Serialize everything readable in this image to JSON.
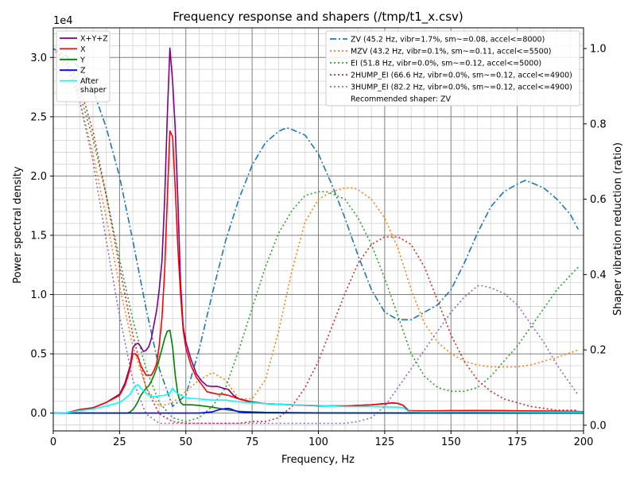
{
  "chart_data": {
    "type": "line",
    "title": "Frequency response and shapers (/tmp/t1_x.csv)",
    "xlabel": "Frequency, Hz",
    "ylabel": "Power spectral density",
    "y2label": "Shaper vibration reduction (ratio)",
    "y_offset_label": "1e4",
    "xlim": [
      0,
      200
    ],
    "ylim": [
      -1500,
      32500
    ],
    "y2lim": [
      -0.015,
      1.055
    ],
    "x_ticks": [
      "0",
      "25",
      "50",
      "75",
      "100",
      "125",
      "150",
      "175",
      "200"
    ],
    "y_ticks": [
      "0.0",
      "0.5",
      "1.0",
      "1.5",
      "2.0",
      "2.5",
      "3.0"
    ],
    "y2_ticks": [
      "0.0",
      "0.2",
      "0.4",
      "0.6",
      "0.8",
      "1.0"
    ],
    "grid": true,
    "legend_psd_position": "top-left",
    "legend_shapers_position": "top-right",
    "psd_series": [
      {
        "name": "X+Y+Z",
        "color": "#800080",
        "x": [
          0,
          5,
          10,
          15,
          20,
          25,
          27,
          29,
          30,
          31,
          32,
          33,
          34,
          35,
          36,
          37,
          38,
          39,
          40,
          41,
          42,
          43,
          44,
          45,
          46,
          47,
          48,
          49,
          50,
          52,
          54,
          56,
          58,
          60,
          62,
          64,
          66,
          68,
          70,
          75,
          80,
          90,
          100,
          110,
          120,
          125,
          128,
          130,
          132,
          134,
          140,
          150,
          160,
          170,
          180,
          190,
          200
        ],
        "y": [
          0,
          20,
          300,
          450,
          900,
          1600,
          2500,
          4000,
          5500,
          5800,
          5900,
          5600,
          5200,
          5300,
          5600,
          6300,
          7500,
          8700,
          10500,
          12800,
          18000,
          25000,
          30800,
          28000,
          24000,
          18000,
          11000,
          7300,
          6000,
          4500,
          3300,
          2700,
          2300,
          2250,
          2250,
          2100,
          2000,
          1500,
          1200,
          900,
          800,
          700,
          620,
          600,
          700,
          800,
          860,
          820,
          650,
          200,
          180,
          200,
          220,
          200,
          180,
          160,
          120
        ]
      },
      {
        "name": "X",
        "color": "#ff0000",
        "x": [
          0,
          5,
          10,
          15,
          20,
          25,
          27,
          28,
          29,
          30,
          31,
          32,
          33,
          34,
          35,
          36,
          37,
          38,
          39,
          40,
          41,
          42,
          43,
          44,
          45,
          46,
          47,
          48,
          49,
          50,
          52,
          54,
          56,
          58,
          60,
          62,
          64,
          66,
          68,
          70,
          75,
          80,
          90,
          100,
          110,
          120,
          125,
          128,
          130,
          132,
          134,
          140,
          150,
          160,
          170,
          180,
          190,
          200
        ],
        "y": [
          0,
          20,
          300,
          450,
          900,
          1500,
          2300,
          3000,
          3800,
          5000,
          5000,
          4700,
          4000,
          3600,
          3200,
          3200,
          3200,
          3600,
          4200,
          5800,
          8000,
          12000,
          18000,
          23800,
          23300,
          19000,
          14000,
          10000,
          7000,
          5500,
          4000,
          3000,
          2400,
          1800,
          1700,
          1600,
          1600,
          1500,
          1350,
          1200,
          950,
          800,
          700,
          620,
          600,
          700,
          800,
          860,
          820,
          650,
          200,
          180,
          200,
          220,
          200,
          180,
          160,
          120
        ]
      },
      {
        "name": "Y",
        "color": "#008000",
        "x": [
          0,
          10,
          20,
          28,
          29,
          30,
          31,
          32,
          33,
          34,
          35,
          36,
          37,
          38,
          39,
          40,
          41,
          42,
          43,
          44,
          45,
          46,
          47,
          48,
          49,
          50,
          52,
          55,
          60,
          65,
          70,
          80,
          100,
          150,
          200
        ],
        "y": [
          0,
          0,
          0,
          0,
          100,
          300,
          600,
          1000,
          1500,
          1800,
          2100,
          2300,
          2700,
          3200,
          3800,
          4600,
          5400,
          6300,
          6900,
          7000,
          5600,
          3200,
          1600,
          900,
          700,
          700,
          700,
          650,
          500,
          300,
          150,
          60,
          20,
          10,
          0
        ]
      },
      {
        "name": "Z",
        "color": "#0000ff",
        "x": [
          0,
          20,
          40,
          55,
          60,
          62,
          64,
          66,
          67,
          68,
          70,
          72,
          75,
          80,
          100,
          150,
          200
        ],
        "y": [
          0,
          0,
          0,
          0,
          100,
          250,
          350,
          400,
          350,
          250,
          100,
          50,
          30,
          20,
          10,
          0,
          0
        ]
      },
      {
        "name": "After\nshaper",
        "color": "#00ffff",
        "x": [
          0,
          5,
          10,
          15,
          20,
          25,
          27,
          29,
          30,
          31,
          32,
          33,
          34,
          35,
          36,
          37,
          38,
          40,
          42,
          44,
          45,
          46,
          48,
          50,
          52,
          55,
          60,
          65,
          70,
          80,
          90,
          100,
          110,
          120,
          130,
          132,
          134,
          140,
          150,
          160,
          170,
          180,
          200
        ],
        "y": [
          0,
          20,
          200,
          350,
          600,
          900,
          1200,
          1600,
          2000,
          2300,
          2400,
          2100,
          1900,
          1700,
          1500,
          1400,
          1400,
          1450,
          1500,
          1700,
          2100,
          1800,
          1500,
          1300,
          1250,
          1200,
          1100,
          1100,
          950,
          800,
          700,
          650,
          550,
          550,
          500,
          450,
          150,
          100,
          120,
          120,
          100,
          90,
          80
        ]
      }
    ],
    "shaper_series": [
      {
        "name": "ZV (45.2 Hz, vibr=1.7%, sm~=0.08, accel<=8000)",
        "color": "#1f77b4",
        "dash": "dashdot",
        "x": [
          0,
          5,
          10,
          15,
          20,
          25,
          30,
          35,
          40,
          45,
          50,
          55,
          60,
          65,
          70,
          75,
          80,
          85,
          88,
          90,
          95,
          100,
          105,
          110,
          115,
          120,
          125,
          130,
          135,
          140,
          145,
          150,
          155,
          160,
          165,
          170,
          175,
          178,
          180,
          185,
          190,
          195,
          198
        ],
        "y": [
          1.0,
          0.98,
          0.95,
          0.89,
          0.79,
          0.66,
          0.49,
          0.31,
          0.15,
          0.05,
          0.08,
          0.2,
          0.35,
          0.49,
          0.6,
          0.69,
          0.75,
          0.78,
          0.79,
          0.785,
          0.77,
          0.72,
          0.64,
          0.55,
          0.45,
          0.36,
          0.3,
          0.28,
          0.28,
          0.3,
          0.32,
          0.36,
          0.43,
          0.51,
          0.58,
          0.62,
          0.64,
          0.65,
          0.645,
          0.63,
          0.6,
          0.56,
          0.52
        ]
      },
      {
        "name": "MZV (43.2 Hz, vibr=0.1%, sm~=0.11, accel<=5500)",
        "color": "#ff7f0e",
        "dash": "dotted",
        "x": [
          0,
          5,
          10,
          15,
          20,
          25,
          30,
          35,
          40,
          45,
          50,
          55,
          60,
          65,
          70,
          75,
          80,
          85,
          90,
          95,
          100,
          105,
          110,
          113,
          115,
          120,
          125,
          130,
          135,
          140,
          145,
          150,
          155,
          160,
          165,
          170,
          175,
          180,
          185,
          190,
          198
        ],
        "y": [
          1.0,
          0.95,
          0.86,
          0.72,
          0.55,
          0.37,
          0.21,
          0.1,
          0.05,
          0.06,
          0.09,
          0.12,
          0.14,
          0.12,
          0.07,
          0.07,
          0.12,
          0.25,
          0.41,
          0.54,
          0.6,
          0.62,
          0.63,
          0.63,
          0.625,
          0.6,
          0.55,
          0.47,
          0.36,
          0.27,
          0.22,
          0.19,
          0.17,
          0.16,
          0.155,
          0.155,
          0.155,
          0.16,
          0.17,
          0.18,
          0.2
        ]
      },
      {
        "name": "EI (51.8 Hz, vibr=0.0%, sm~=0.12, accel<=5000)",
        "color": "#2ca02c",
        "dash": "dotted",
        "x": [
          0,
          5,
          10,
          15,
          20,
          25,
          30,
          35,
          40,
          45,
          50,
          55,
          60,
          65,
          70,
          75,
          80,
          85,
          90,
          95,
          100,
          103,
          105,
          110,
          115,
          120,
          125,
          130,
          135,
          140,
          145,
          150,
          155,
          160,
          165,
          170,
          175,
          180,
          185,
          190,
          198
        ],
        "y": [
          1.0,
          0.96,
          0.88,
          0.76,
          0.61,
          0.44,
          0.28,
          0.15,
          0.06,
          0.02,
          0.01,
          0.02,
          0.05,
          0.1,
          0.2,
          0.31,
          0.42,
          0.51,
          0.57,
          0.61,
          0.62,
          0.62,
          0.615,
          0.6,
          0.55,
          0.48,
          0.39,
          0.29,
          0.19,
          0.13,
          0.1,
          0.09,
          0.09,
          0.1,
          0.13,
          0.17,
          0.21,
          0.26,
          0.31,
          0.36,
          0.42
        ]
      },
      {
        "name": "2HUMP_EI (66.6 Hz, vibr=0.0%, sm~=0.12, accel<=4900)",
        "color": "#d62728",
        "dash": "dotted",
        "x": [
          0,
          5,
          10,
          15,
          20,
          25,
          30,
          35,
          40,
          45,
          50,
          55,
          60,
          65,
          70,
          75,
          80,
          85,
          90,
          95,
          100,
          105,
          110,
          115,
          120,
          125,
          130,
          135,
          140,
          145,
          150,
          155,
          160,
          165,
          170,
          175,
          180,
          185,
          190,
          198
        ],
        "y": [
          1.0,
          0.97,
          0.9,
          0.78,
          0.61,
          0.42,
          0.24,
          0.1,
          0.03,
          0.01,
          0.005,
          0.005,
          0.005,
          0.005,
          0.005,
          0.01,
          0.01,
          0.02,
          0.05,
          0.1,
          0.17,
          0.26,
          0.35,
          0.43,
          0.48,
          0.5,
          0.5,
          0.48,
          0.42,
          0.33,
          0.24,
          0.17,
          0.12,
          0.09,
          0.07,
          0.06,
          0.05,
          0.045,
          0.04,
          0.04
        ]
      },
      {
        "name": "3HUMP_EI (82.2 Hz, vibr=0.0%, sm~=0.12, accel<=4900)",
        "color": "#9467bd",
        "dash": "dotted",
        "x": [
          0,
          5,
          10,
          15,
          20,
          25,
          30,
          35,
          40,
          45,
          50,
          60,
          70,
          80,
          90,
          100,
          110,
          115,
          120,
          125,
          130,
          135,
          140,
          145,
          150,
          155,
          160,
          162,
          165,
          170,
          175,
          180,
          185,
          190,
          195,
          198
        ],
        "y": [
          1.0,
          0.96,
          0.86,
          0.7,
          0.49,
          0.29,
          0.12,
          0.03,
          0.005,
          0.005,
          0.005,
          0.005,
          0.005,
          0.005,
          0.005,
          0.005,
          0.005,
          0.01,
          0.02,
          0.05,
          0.1,
          0.15,
          0.2,
          0.25,
          0.3,
          0.34,
          0.37,
          0.37,
          0.365,
          0.35,
          0.32,
          0.27,
          0.22,
          0.16,
          0.11,
          0.08
        ]
      }
    ],
    "recommendation": "Recommended shaper: ZV"
  }
}
